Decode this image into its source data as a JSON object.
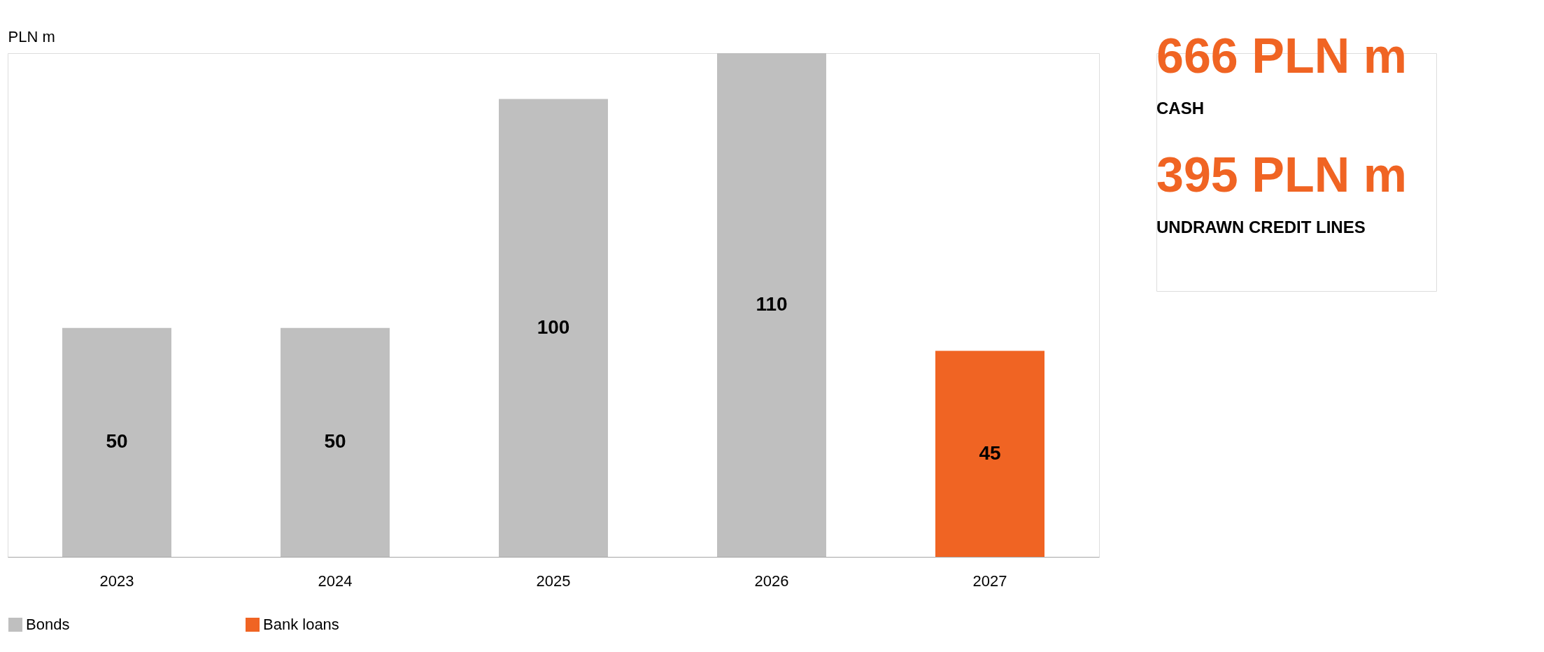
{
  "chart_data": [
    {
      "type": "bar",
      "ylabel": "PLN m",
      "categories": [
        "2023",
        "2024",
        "2025",
        "2026",
        "2027"
      ],
      "series": [
        {
          "name": "Bonds",
          "color": "#bfbfbf",
          "values": [
            50,
            50,
            100,
            110,
            null
          ]
        },
        {
          "name": "Bank loans",
          "color": "#f06423",
          "values": [
            null,
            null,
            null,
            null,
            45
          ]
        }
      ],
      "data_labels": true,
      "legend": "bottom",
      "grid": false
    },
    {
      "type": "other",
      "annotations": [
        "666 PLN m",
        "CASH",
        "395 PLN m",
        "UNDRAWN CREDIT LINES"
      ]
    }
  ]
}
